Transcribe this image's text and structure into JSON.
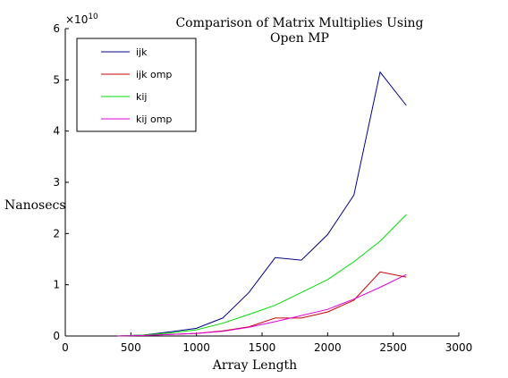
{
  "chart_data": {
    "type": "line",
    "title": "Comparison of Matrix Multiplies Using",
    "subtitle": "Open MP",
    "xlabel": "Array Length",
    "ylabel": "Nanosecs",
    "xlim": [
      0,
      3000
    ],
    "ylim": [
      0,
      6
    ],
    "y_multiplier": "×10",
    "y_multiplier_exp": "10",
    "grid": false,
    "legend_position": "top-left",
    "x_ticks": [
      "0",
      "500",
      "1000",
      "1500",
      "2000",
      "2500",
      "3000"
    ],
    "y_ticks": [
      "0",
      "1",
      "2",
      "3",
      "4",
      "5",
      "6"
    ],
    "series": [
      {
        "name": "ijk",
        "color": "#00008b",
        "x": [
          400,
          600,
          800,
          1000,
          1200,
          1400,
          1600,
          1800,
          2000,
          2200,
          2400,
          2600
        ],
        "y": [
          0.0,
          0.02,
          0.08,
          0.15,
          0.35,
          0.85,
          1.53,
          1.48,
          1.98,
          2.75,
          5.15,
          4.5
        ]
      },
      {
        "name": "ijk omp",
        "color": "#cc0000",
        "x": [
          400,
          600,
          800,
          1000,
          1200,
          1400,
          1600,
          1800,
          2000,
          2200,
          2400,
          2600
        ],
        "y": [
          0.0,
          0.01,
          0.03,
          0.05,
          0.1,
          0.18,
          0.35,
          0.35,
          0.47,
          0.7,
          1.25,
          1.15
        ]
      },
      {
        "name": "kij",
        "color": "#00dd00",
        "x": [
          400,
          600,
          800,
          1000,
          1200,
          1400,
          1600,
          1800,
          2000,
          2200,
          2400,
          2600
        ],
        "y": [
          0.0,
          0.02,
          0.06,
          0.12,
          0.25,
          0.42,
          0.6,
          0.85,
          1.1,
          1.45,
          1.85,
          2.37
        ]
      },
      {
        "name": "kij omp",
        "color": "#dd00dd",
        "x": [
          400,
          600,
          800,
          1000,
          1200,
          1400,
          1600,
          1800,
          2000,
          2200,
          2400,
          2600
        ],
        "y": [
          0.0,
          0.01,
          0.03,
          0.05,
          0.09,
          0.17,
          0.28,
          0.4,
          0.52,
          0.72,
          0.95,
          1.2
        ]
      }
    ]
  }
}
